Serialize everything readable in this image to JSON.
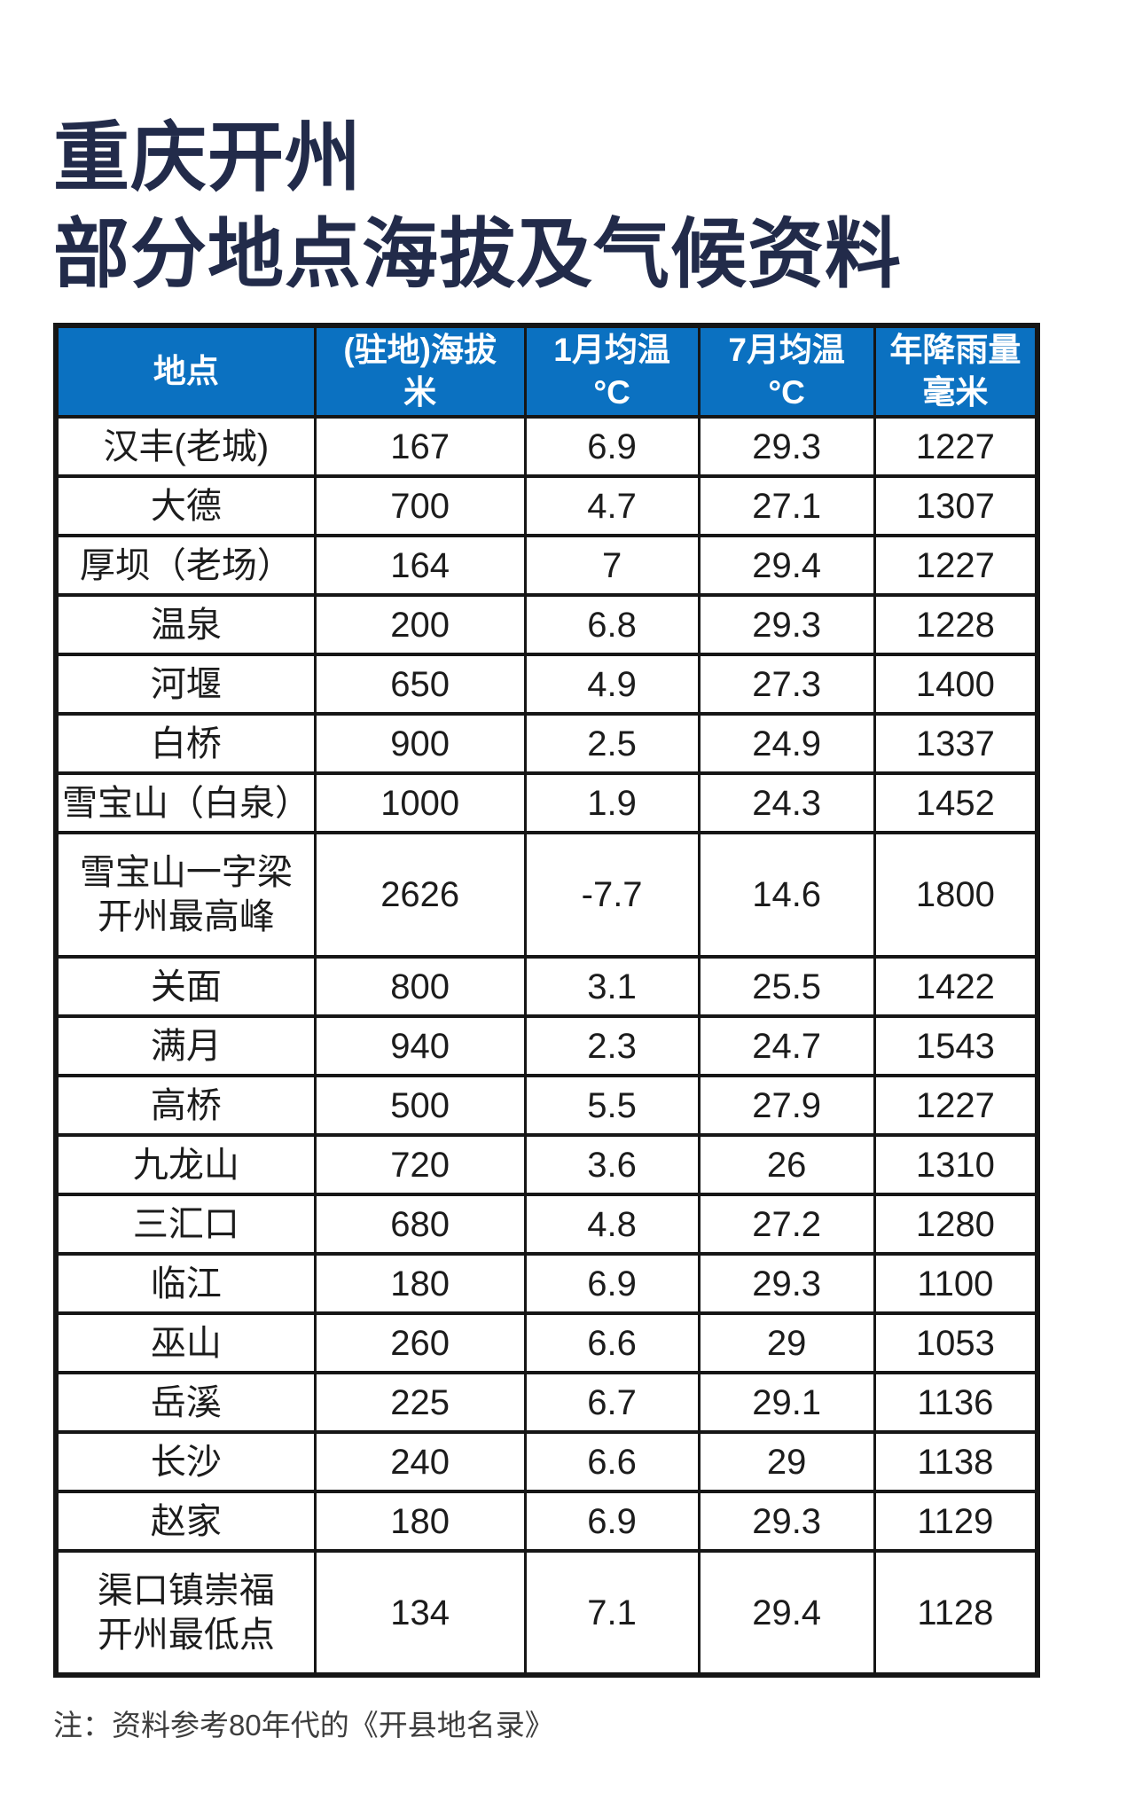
{
  "chart_data": {
    "type": "table",
    "title_lines": [
      "重庆开州",
      "部分地点海拔及气候资料"
    ],
    "columns": [
      {
        "label": "地点",
        "unit": ""
      },
      {
        "label": "(驻地)海拔",
        "unit": "米"
      },
      {
        "label": "1月均温",
        "unit": "°C"
      },
      {
        "label": "7月均温",
        "unit": "°C"
      },
      {
        "label": "年降雨量",
        "unit": "毫米"
      }
    ],
    "rows": [
      {
        "name_lines": [
          "汉丰(老城)"
        ],
        "values": [
          "167",
          "6.9",
          "29.3",
          "1227"
        ]
      },
      {
        "name_lines": [
          "大德"
        ],
        "values": [
          "700",
          "4.7",
          "27.1",
          "1307"
        ]
      },
      {
        "name_lines": [
          "厚坝（老场）"
        ],
        "values": [
          "164",
          "7",
          "29.4",
          "1227"
        ]
      },
      {
        "name_lines": [
          "温泉"
        ],
        "values": [
          "200",
          "6.8",
          "29.3",
          "1228"
        ]
      },
      {
        "name_lines": [
          "河堰"
        ],
        "values": [
          "650",
          "4.9",
          "27.3",
          "1400"
        ]
      },
      {
        "name_lines": [
          "白桥"
        ],
        "values": [
          "900",
          "2.5",
          "24.9",
          "1337"
        ]
      },
      {
        "name_lines": [
          "雪宝山（白泉）"
        ],
        "values": [
          "1000",
          "1.9",
          "24.3",
          "1452"
        ]
      },
      {
        "name_lines": [
          "雪宝山一字梁",
          "开州最高峰"
        ],
        "values": [
          "2626",
          "-7.7",
          "14.6",
          "1800"
        ]
      },
      {
        "name_lines": [
          "关面"
        ],
        "values": [
          "800",
          "3.1",
          "25.5",
          "1422"
        ]
      },
      {
        "name_lines": [
          "满月"
        ],
        "values": [
          "940",
          "2.3",
          "24.7",
          "1543"
        ]
      },
      {
        "name_lines": [
          "高桥"
        ],
        "values": [
          "500",
          "5.5",
          "27.9",
          "1227"
        ]
      },
      {
        "name_lines": [
          "九龙山"
        ],
        "values": [
          "720",
          "3.6",
          "26",
          "1310"
        ]
      },
      {
        "name_lines": [
          "三汇口"
        ],
        "values": [
          "680",
          "4.8",
          "27.2",
          "1280"
        ]
      },
      {
        "name_lines": [
          "临江"
        ],
        "values": [
          "180",
          "6.9",
          "29.3",
          "1100"
        ]
      },
      {
        "name_lines": [
          "巫山"
        ],
        "values": [
          "260",
          "6.6",
          "29",
          "1053"
        ]
      },
      {
        "name_lines": [
          "岳溪"
        ],
        "values": [
          "225",
          "6.7",
          "29.1",
          "1136"
        ]
      },
      {
        "name_lines": [
          "长沙"
        ],
        "values": [
          "240",
          "6.6",
          "29",
          "1138"
        ]
      },
      {
        "name_lines": [
          "赵家"
        ],
        "values": [
          "180",
          "6.9",
          "29.3",
          "1129"
        ]
      },
      {
        "name_lines": [
          "渠口镇崇福",
          "开州最低点"
        ],
        "values": [
          "134",
          "7.1",
          "29.4",
          "1128"
        ]
      }
    ],
    "note": "注：资料参考80年代的《开县地名录》"
  },
  "colors": {
    "header_bg": "#0b71c1",
    "header_text": "#ffffff",
    "title": "#222b4a",
    "body_text": "#1c1c1c",
    "border": "#161616",
    "note_text": "#3d3d3d"
  }
}
